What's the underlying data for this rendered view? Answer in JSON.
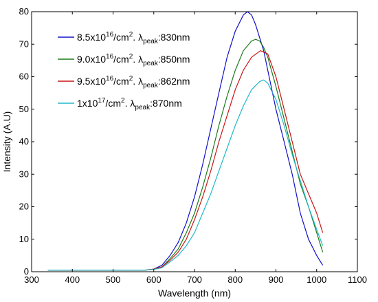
{
  "chart_data": {
    "type": "line",
    "title": "",
    "xlabel": "Wavelength (nm)",
    "ylabel": "Intensity (A.U)",
    "xlim": [
      300,
      1100
    ],
    "ylim": [
      0,
      80
    ],
    "xticks": [
      300,
      400,
      500,
      600,
      700,
      800,
      900,
      1000,
      1100
    ],
    "yticks": [
      0,
      10,
      20,
      30,
      40,
      50,
      60,
      70,
      80
    ],
    "grid": false,
    "legend_position": "top-left",
    "series": [
      {
        "name": "8.5x10^16/cm^2. λpeak:830nm",
        "legend": {
          "base": "8.5x10",
          "exp": "16",
          "mid": "/cm",
          "mid_exp": "2",
          "sep": ". ",
          "greek": "λ",
          "sub": "peak",
          "tail": ":830nm"
        },
        "color": "#1010c8",
        "x": [
          340,
          400,
          500,
          580,
          600,
          620,
          640,
          660,
          680,
          700,
          720,
          740,
          760,
          780,
          800,
          820,
          830,
          840,
          850,
          860,
          870,
          880,
          900,
          920,
          940,
          960,
          980,
          1000,
          1015
        ],
        "y": [
          0.5,
          0.5,
          0.5,
          0.5,
          0.8,
          2,
          5,
          9,
          15,
          23,
          33,
          44,
          55,
          66,
          74,
          79,
          80,
          79,
          76,
          72,
          68,
          62,
          50,
          40,
          30,
          18,
          10,
          5,
          2
        ]
      },
      {
        "name": "9.0x10^16/cm^2. λpeak:850nm",
        "legend": {
          "base": "9.0x10",
          "exp": "16",
          "mid": "/cm",
          "mid_exp": "2",
          "sep": ". ",
          "greek": "λ",
          "sub": "peak",
          "tail": ":850nm"
        },
        "color": "#1a7a1a",
        "x": [
          340,
          400,
          500,
          580,
          600,
          620,
          640,
          660,
          680,
          700,
          720,
          740,
          760,
          780,
          800,
          820,
          840,
          850,
          860,
          870,
          880,
          900,
          920,
          940,
          960,
          980,
          1000,
          1015
        ],
        "y": [
          0.5,
          0.5,
          0.5,
          0.5,
          0.8,
          1.5,
          4,
          7,
          12,
          18,
          26,
          35,
          45,
          54,
          62,
          68,
          71,
          71.5,
          71,
          69,
          66,
          57,
          47,
          37,
          27,
          20,
          12,
          6
        ]
      },
      {
        "name": "9.5x10^16/cm^2. λpeak:862nm",
        "legend": {
          "base": "9.5x10",
          "exp": "16",
          "mid": "/cm",
          "mid_exp": "2",
          "sep": ". ",
          "greek": "λ",
          "sub": "peak",
          "tail": ":862nm"
        },
        "color": "#c81414",
        "x": [
          340,
          400,
          500,
          580,
          600,
          620,
          640,
          660,
          680,
          700,
          720,
          740,
          760,
          780,
          800,
          820,
          840,
          862,
          880,
          900,
          920,
          940,
          960,
          980,
          1000,
          1015
        ],
        "y": [
          0.5,
          0.5,
          0.5,
          0.5,
          0.8,
          1.5,
          3.5,
          6,
          10,
          16,
          23,
          31,
          40,
          48,
          56,
          62,
          66,
          68,
          67,
          60,
          50,
          40,
          30,
          24,
          18,
          12
        ]
      },
      {
        "name": "1x10^17/cm^2. λpeak:870nm",
        "legend": {
          "base": "1x10",
          "exp": "17",
          "mid": "/cm",
          "mid_exp": "2",
          "sep": ". ",
          "greek": "λ",
          "sub": "peak",
          "tail": ":870nm"
        },
        "color": "#20b8c8",
        "x": [
          340,
          400,
          500,
          580,
          600,
          620,
          640,
          660,
          680,
          700,
          720,
          740,
          760,
          780,
          800,
          820,
          840,
          860,
          870,
          880,
          900,
          920,
          940,
          960,
          980,
          1000,
          1015
        ],
        "y": [
          0.5,
          0.5,
          0.5,
          0.5,
          0.7,
          1.2,
          3,
          5,
          8,
          12,
          18,
          24,
          31,
          38,
          45,
          51,
          56,
          58.5,
          59,
          58,
          53,
          45,
          36,
          28,
          20,
          13,
          8
        ]
      }
    ]
  }
}
